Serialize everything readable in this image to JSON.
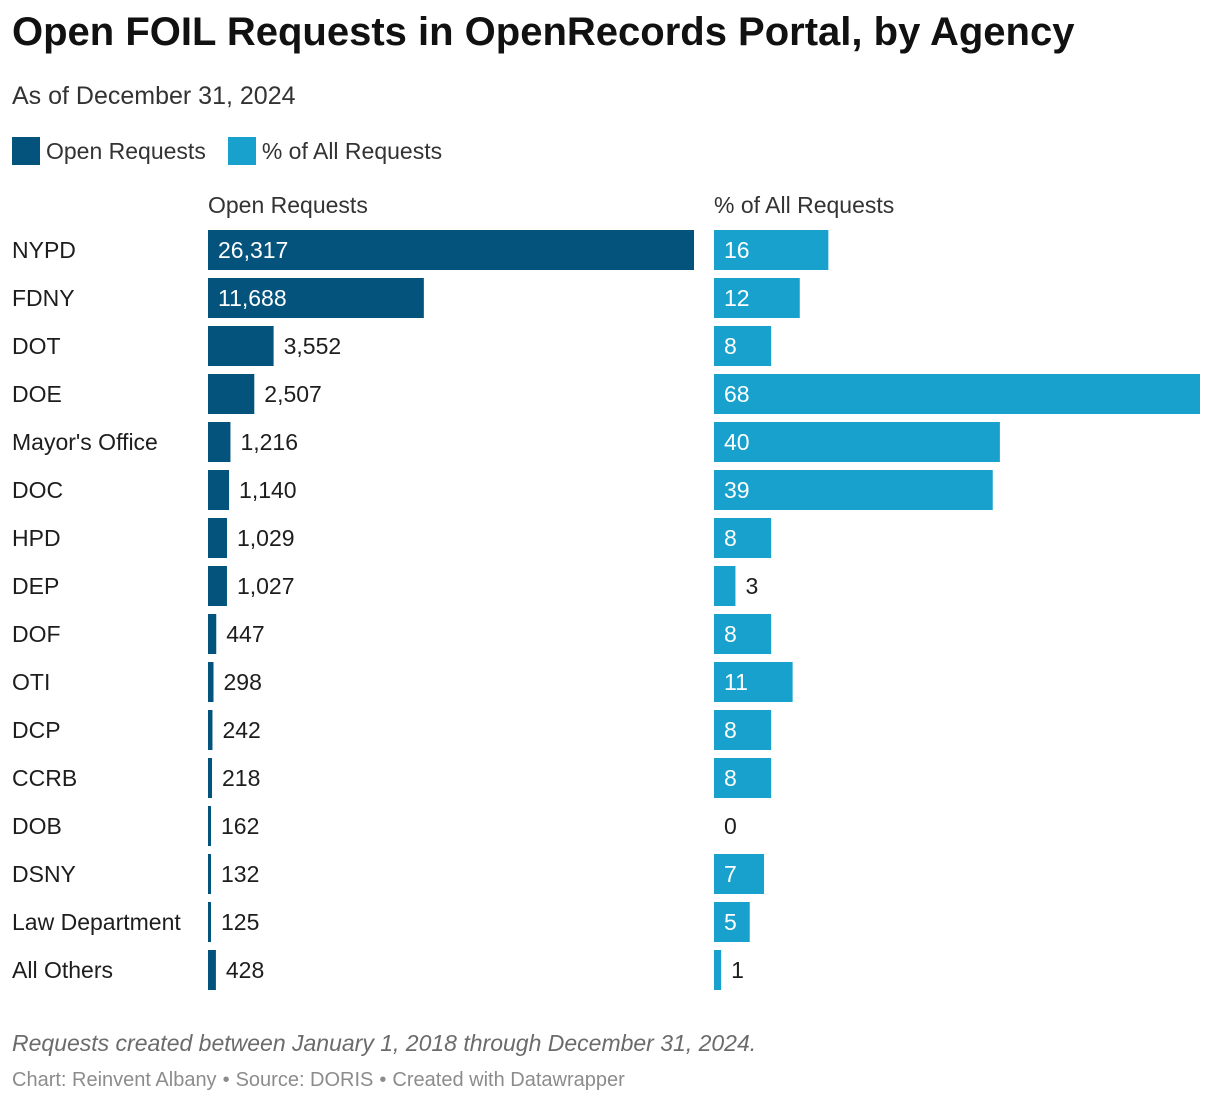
{
  "header": {
    "title": "Open FOIL Requests in OpenRecords Portal, by Agency",
    "subtitle": "As of December 31, 2024"
  },
  "legend": [
    {
      "label": "Open Requests",
      "color": "#03537c"
    },
    {
      "label": "% of All Requests",
      "color": "#18a1cd"
    }
  ],
  "chart_data": {
    "type": "bar",
    "orientation": "horizontal",
    "title": "Open FOIL Requests in OpenRecords Portal, by Agency",
    "subtitle": "As of December 31, 2024",
    "categories": [
      "NYPD",
      "FDNY",
      "DOT",
      "DOE",
      "Mayor's Office",
      "DOC",
      "HPD",
      "DEP",
      "DOF",
      "OTI",
      "DCP",
      "CCRB",
      "DOB",
      "DSNY",
      "Law Department",
      "All Others"
    ],
    "series": [
      {
        "name": "Open Requests",
        "color": "#03537c",
        "values": [
          26317,
          11688,
          3552,
          2507,
          1216,
          1140,
          1029,
          1027,
          447,
          298,
          242,
          218,
          162,
          132,
          125,
          428
        ],
        "labels": [
          "26,317",
          "11,688",
          "3,552",
          "2,507",
          "1,216",
          "1,140",
          "1,029",
          "1,027",
          "447",
          "298",
          "242",
          "218",
          "162",
          "132",
          "125",
          "428"
        ],
        "xlim": [
          0,
          26317
        ]
      },
      {
        "name": "% of All Requests",
        "color": "#18a1cd",
        "values": [
          16,
          12,
          8,
          68,
          40,
          39,
          8,
          3,
          8,
          11,
          8,
          8,
          0,
          7,
          5,
          1
        ],
        "labels": [
          "16",
          "12",
          "8",
          "68",
          "40",
          "39",
          "8",
          "3",
          "8",
          "11",
          "8",
          "8",
          "0",
          "7",
          "5",
          "1"
        ],
        "xlim": [
          0,
          68
        ]
      }
    ],
    "grid": false
  },
  "footer": {
    "note": "Requests created between January 1, 2018 through December 31, 2024.",
    "credit_chart": "Chart: Reinvent Albany",
    "credit_source": "Source: DORIS",
    "credit_tool": "Created with Datawrapper",
    "separator": "•"
  }
}
